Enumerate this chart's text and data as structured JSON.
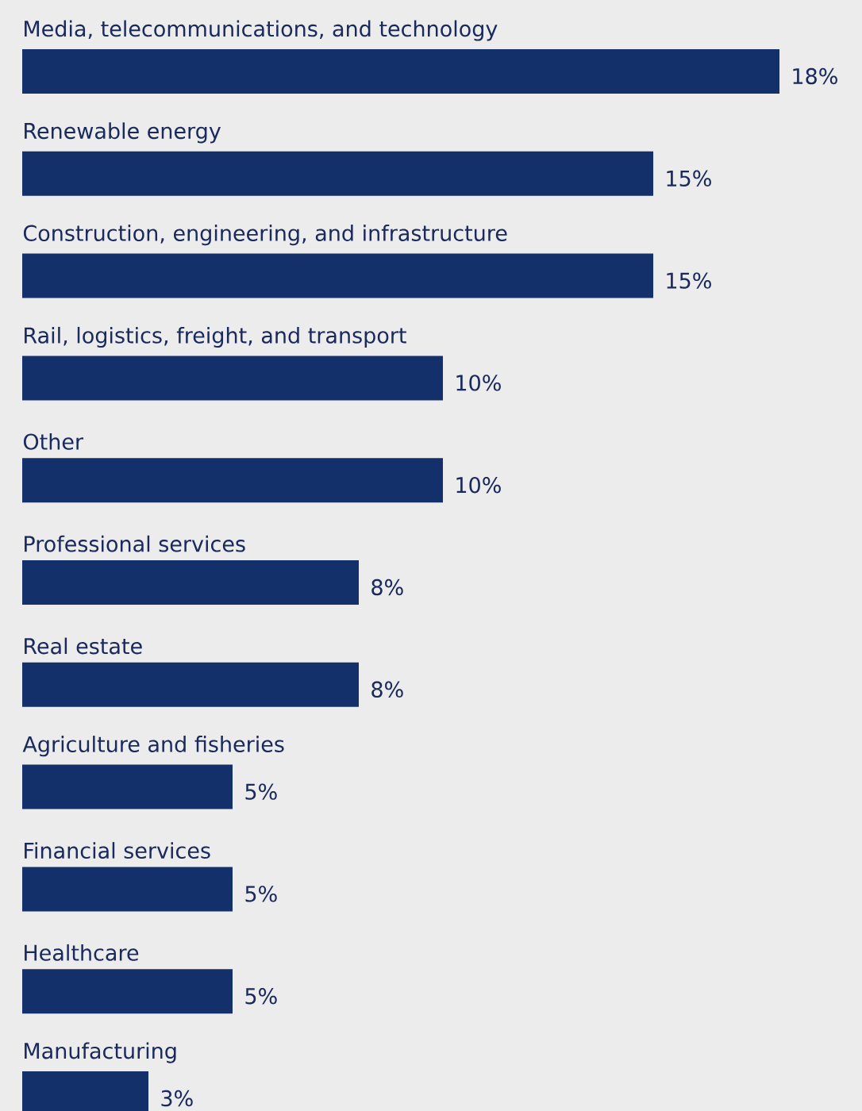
{
  "chart_data": {
    "type": "bar",
    "orientation": "horizontal",
    "categories": [
      "Media, telecommunications, and technology",
      "Renewable energy",
      "Construction, engineering, and infrastructure",
      "Rail, logistics, freight, and transport",
      "Other",
      "Professional services",
      "Real estate",
      "Agriculture and fisheries",
      "Financial services",
      "Healthcare",
      "Manufacturing"
    ],
    "values": [
      18,
      15,
      15,
      10,
      10,
      8,
      8,
      5,
      5,
      5,
      3
    ],
    "value_labels": [
      "18%",
      "15%",
      "15%",
      "10%",
      "10%",
      "8%",
      "8%",
      "5%",
      "5%",
      "5%",
      "3%"
    ],
    "color": "#14306b"
  }
}
